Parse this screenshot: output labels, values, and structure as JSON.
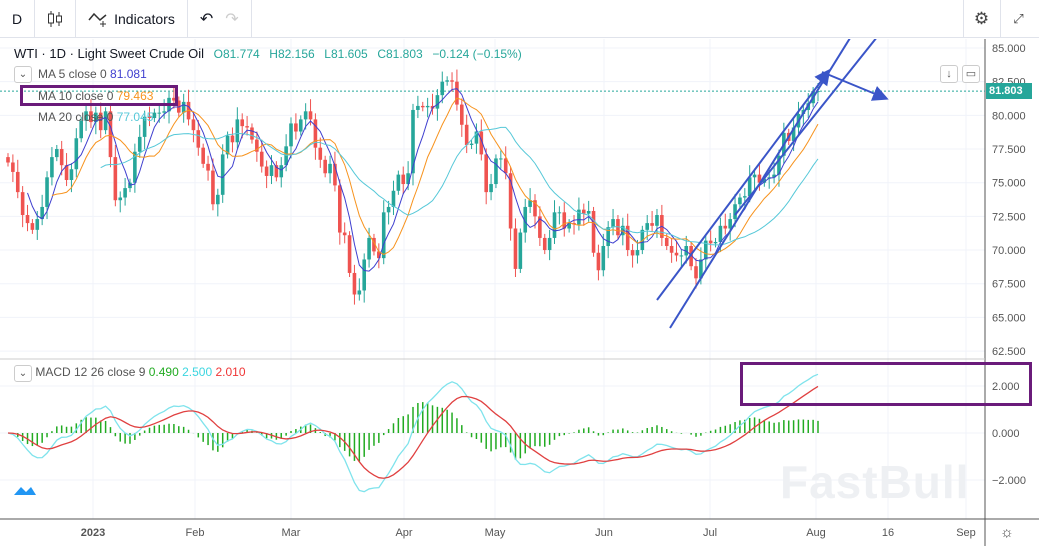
{
  "toolbar": {
    "interval": "D",
    "chart_type_icon": "candles-icon",
    "indicators_label": "Indicators",
    "undo_icon": "undo-icon",
    "redo_icon": "redo-icon",
    "settings_icon": "gear-icon",
    "fullscreen_icon": "fullscreen-icon"
  },
  "legend": {
    "symbol": "WTI · 1D · Light Sweet Crude Oil",
    "open": "O81.774",
    "high": "H82.156",
    "low": "L81.605",
    "close": "C81.803",
    "change": "−0.124 (−0.15%)"
  },
  "ma": [
    {
      "label": "MA 5 close 0",
      "value": "81.081",
      "color": "#3f3fcf"
    },
    {
      "label": "MA 10 close 0",
      "value": "79.463",
      "color": "#f7931e"
    },
    {
      "label": "MA 20 close 0",
      "value": "77.045",
      "color": "#56c8d8"
    }
  ],
  "macd": {
    "label": "MACD 12 26 close 9",
    "hist": "0.490",
    "macd": "2.500",
    "signal": "2.010"
  },
  "last_price": "81.803",
  "watermark": "FastBull",
  "colors": {
    "up": "#26a69a",
    "down": "#ef5350",
    "annotation": "#3a55c8",
    "highlight": "#6a1b7a"
  },
  "chart_data": {
    "type": "candlestick",
    "price_ticks": [
      "85.000",
      "82.500",
      "80.000",
      "77.500",
      "75.000",
      "72.500",
      "70.000",
      "67.500",
      "65.000",
      "62.500"
    ],
    "macd_ticks": [
      "2.000",
      "0.000",
      "-2.000"
    ],
    "time_ticks": [
      "2023",
      "Feb",
      "Mar",
      "Apr",
      "May",
      "Jun",
      "Jul",
      "Aug",
      "16",
      "Sep"
    ],
    "ylim": [
      62.5,
      85
    ],
    "closes": [
      76.5,
      75.8,
      74.3,
      72.6,
      72.0,
      71.5,
      72.3,
      73.2,
      75.4,
      76.9,
      77.5,
      76.3,
      75.2,
      76.0,
      78.3,
      79.6,
      80.3,
      79.5,
      80.2,
      78.9,
      80.3,
      76.9,
      73.7,
      73.9,
      74.6,
      75.0,
      77.3,
      78.4,
      79.9,
      79.8,
      80.2,
      80.2,
      80.3,
      81.3,
      81.1,
      80.2,
      81.0,
      79.7,
      78.9,
      77.6,
      76.4,
      75.9,
      73.4,
      74.1,
      77.1,
      78.5,
      78.0,
      79.7,
      79.2,
      79.1,
      78.2,
      77.3,
      76.2,
      75.5,
      76.3,
      75.4,
      76.3,
      77.7,
      79.4,
      78.8,
      79.7,
      80.3,
      79.7,
      77.6,
      76.7,
      75.7,
      76.4,
      74.8,
      71.3,
      71.1,
      68.3,
      66.7,
      67.0,
      69.3,
      70.9,
      69.9,
      69.4,
      72.8,
      73.2,
      74.4,
      75.6,
      74.9,
      75.7,
      80.4,
      80.7,
      80.6,
      80.7,
      80.5,
      81.5,
      82.5,
      82.6,
      82.5,
      80.8,
      79.3,
      77.8,
      77.9,
      78.8,
      77.1,
      74.3,
      74.9,
      76.8,
      76.8,
      75.7,
      71.6,
      68.6,
      71.3,
      73.2,
      73.7,
      72.5,
      70.9,
      70.0,
      70.9,
      72.8,
      72.8,
      71.6,
      72.0,
      71.9,
      73.0,
      72.7,
      72.9,
      69.8,
      68.5,
      70.3,
      71.7,
      72.3,
      71.1,
      71.8,
      70.0,
      69.6,
      70.0,
      71.5,
      72.0,
      71.8,
      72.6,
      70.9,
      70.3,
      69.8,
      69.6,
      69.6,
      70.3,
      68.8,
      67.9,
      69.3,
      70.7,
      70.5,
      70.6,
      71.8,
      71.6,
      72.3,
      73.4,
      73.9,
      74.0,
      75.4,
      75.6,
      75.0,
      75.3,
      75.4,
      75.6,
      77.0,
      78.7,
      78.1,
      79.1,
      80.1,
      80.4,
      80.9,
      81.8,
      81.8
    ]
  }
}
